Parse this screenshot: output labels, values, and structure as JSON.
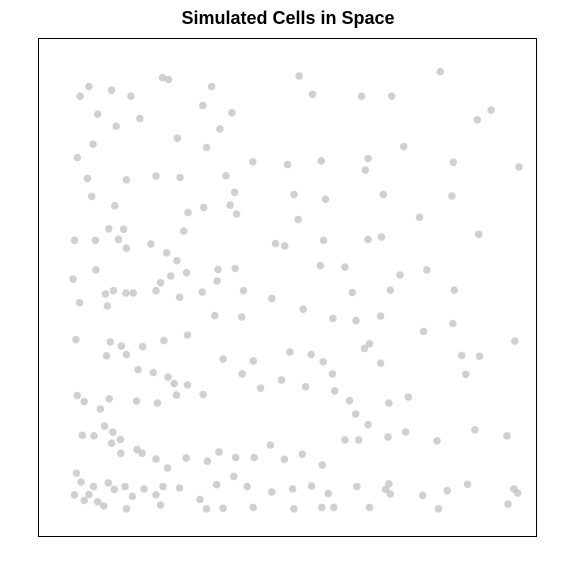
{
  "chart_data": {
    "type": "scatter",
    "title": "Simulated Cells in Space",
    "xlabel": "",
    "ylabel": "",
    "xlim": [
      0,
      100
    ],
    "ylim": [
      0,
      100
    ],
    "grid": false,
    "axes_visible": false,
    "point_color": "#c0c0c0",
    "series": [
      {
        "points": [
          [
            5.2,
            91.3
          ],
          [
            7.1,
            93.4
          ],
          [
            12.0,
            92.6
          ],
          [
            16.2,
            91.3
          ],
          [
            24.3,
            94.9
          ],
          [
            33.6,
            93.4
          ],
          [
            23.0,
            95.3
          ],
          [
            52.5,
            95.7
          ],
          [
            55.4,
            91.7
          ],
          [
            66.0,
            91.3
          ],
          [
            72.5,
            91.3
          ],
          [
            83.0,
            96.6
          ],
          [
            9.0,
            87.4
          ],
          [
            18.1,
            86.5
          ],
          [
            13.0,
            84.8
          ],
          [
            8.0,
            80.9
          ],
          [
            26.2,
            82.2
          ],
          [
            31.7,
            89.3
          ],
          [
            35.4,
            84.2
          ],
          [
            38.0,
            87.7
          ],
          [
            32.5,
            80.2
          ],
          [
            94.0,
            88.3
          ],
          [
            91.0,
            86.2
          ],
          [
            4.6,
            78.0
          ],
          [
            6.8,
            73.5
          ],
          [
            15.2,
            73.2
          ],
          [
            21.6,
            74.0
          ],
          [
            26.8,
            73.7
          ],
          [
            36.7,
            74.1
          ],
          [
            38.6,
            70.5
          ],
          [
            42.5,
            77.1
          ],
          [
            50.0,
            76.5
          ],
          [
            57.3,
            77.3
          ],
          [
            67.4,
            77.8
          ],
          [
            66.8,
            75.3
          ],
          [
            75.1,
            80.4
          ],
          [
            85.8,
            77.0
          ],
          [
            100.0,
            76.0
          ],
          [
            7.7,
            69.6
          ],
          [
            12.7,
            67.6
          ],
          [
            28.5,
            66.1
          ],
          [
            31.9,
            67.2
          ],
          [
            37.6,
            67.7
          ],
          [
            39.0,
            65.8
          ],
          [
            51.4,
            70.0
          ],
          [
            52.3,
            64.6
          ],
          [
            58.2,
            69.0
          ],
          [
            70.7,
            70.0
          ],
          [
            78.5,
            65.1
          ],
          [
            85.5,
            69.7
          ],
          [
            4.0,
            60.1
          ],
          [
            8.5,
            60.1
          ],
          [
            11.4,
            62.6
          ],
          [
            14.6,
            62.5
          ],
          [
            13.5,
            60.3
          ],
          [
            15.2,
            58.4
          ],
          [
            20.5,
            59.3
          ],
          [
            23.9,
            57.4
          ],
          [
            26.1,
            55.7
          ],
          [
            27.6,
            62.1
          ],
          [
            47.4,
            59.4
          ],
          [
            49.4,
            58.9
          ],
          [
            57.8,
            60.1
          ],
          [
            67.4,
            60.3
          ],
          [
            70.3,
            60.8
          ],
          [
            91.3,
            61.4
          ],
          [
            8.6,
            53.7
          ],
          [
            3.7,
            51.7
          ],
          [
            10.7,
            48.5
          ],
          [
            12.4,
            49.2
          ],
          [
            16.7,
            48.7
          ],
          [
            22.6,
            50.9
          ],
          [
            24.8,
            52.4
          ],
          [
            28.2,
            53.1
          ],
          [
            35.0,
            53.8
          ],
          [
            34.8,
            51.3
          ],
          [
            38.7,
            54.0
          ],
          [
            57.1,
            54.6
          ],
          [
            62.4,
            54.3
          ],
          [
            64.0,
            48.8
          ],
          [
            74.3,
            52.6
          ],
          [
            72.2,
            49.3
          ],
          [
            80.1,
            53.7
          ],
          [
            86.0,
            49.3
          ],
          [
            5.1,
            46.6
          ],
          [
            11.1,
            45.9
          ],
          [
            15.1,
            48.7
          ],
          [
            26.7,
            47.8
          ],
          [
            31.6,
            48.9
          ],
          [
            21.6,
            49.2
          ],
          [
            34.3,
            43.8
          ],
          [
            40.1,
            43.5
          ],
          [
            40.5,
            49.2
          ],
          [
            46.6,
            47.5
          ],
          [
            53.4,
            45.2
          ],
          [
            59.8,
            43.2
          ],
          [
            64.8,
            42.7
          ],
          [
            70.1,
            43.7
          ],
          [
            79.4,
            40.4
          ],
          [
            85.7,
            42.1
          ],
          [
            4.3,
            38.6
          ],
          [
            11.7,
            38.1
          ],
          [
            14.1,
            37.2
          ],
          [
            10.9,
            35.1
          ],
          [
            15.2,
            35.4
          ],
          [
            18.7,
            37.1
          ],
          [
            23.3,
            38.4
          ],
          [
            28.4,
            39.6
          ],
          [
            17.7,
            32.1
          ],
          [
            21.0,
            31.5
          ],
          [
            36.1,
            34.4
          ],
          [
            42.6,
            34.0
          ],
          [
            40.2,
            31.2
          ],
          [
            55.1,
            35.4
          ],
          [
            50.5,
            35.9
          ],
          [
            57.7,
            33.8
          ],
          [
            59.7,
            31.2
          ],
          [
            66.6,
            36.7
          ],
          [
            67.7,
            37.7
          ],
          [
            70.1,
            33.5
          ],
          [
            87.6,
            35.2
          ],
          [
            91.5,
            35.0
          ],
          [
            99.1,
            38.3
          ],
          [
            4.6,
            26.5
          ],
          [
            6.1,
            25.2
          ],
          [
            9.6,
            23.6
          ],
          [
            11.5,
            25.8
          ],
          [
            17.4,
            25.3
          ],
          [
            21.9,
            24.9
          ],
          [
            26.0,
            26.6
          ],
          [
            24.2,
            30.5
          ],
          [
            25.5,
            29.1
          ],
          [
            28.4,
            28.8
          ],
          [
            31.8,
            26.7
          ],
          [
            44.2,
            28.1
          ],
          [
            48.7,
            29.9
          ],
          [
            53.9,
            28.4
          ],
          [
            60.2,
            27.5
          ],
          [
            63.4,
            25.4
          ],
          [
            64.7,
            22.5
          ],
          [
            71.9,
            24.9
          ],
          [
            76.1,
            26.2
          ],
          [
            88.5,
            31.1
          ],
          [
            5.7,
            17.9
          ],
          [
            8.2,
            17.8
          ],
          [
            10.5,
            19.9
          ],
          [
            12.3,
            18.6
          ],
          [
            13.9,
            17.0
          ],
          [
            12.0,
            16.2
          ],
          [
            14.0,
            14.0
          ],
          [
            17.5,
            14.8
          ],
          [
            18.6,
            14.0
          ],
          [
            21.6,
            12.8
          ],
          [
            24.1,
            10.8
          ],
          [
            28.1,
            13.0
          ],
          [
            32.7,
            12.3
          ],
          [
            35.2,
            14.3
          ],
          [
            38.8,
            13.1
          ],
          [
            42.8,
            13.1
          ],
          [
            46.3,
            15.8
          ],
          [
            49.3,
            12.7
          ],
          [
            53.2,
            13.8
          ],
          [
            57.5,
            11.5
          ],
          [
            62.4,
            16.9
          ],
          [
            65.4,
            16.9
          ],
          [
            67.4,
            20.2
          ],
          [
            71.7,
            17.5
          ],
          [
            75.5,
            18.6
          ],
          [
            82.3,
            16.7
          ],
          [
            90.5,
            19.1
          ],
          [
            97.4,
            17.8
          ],
          [
            4.4,
            9.7
          ],
          [
            5.4,
            7.8
          ],
          [
            7.1,
            5.1
          ],
          [
            8.1,
            6.8
          ],
          [
            11.3,
            7.6
          ],
          [
            12.6,
            6.2
          ],
          [
            14.9,
            6.8
          ],
          [
            16.5,
            4.7
          ],
          [
            19.0,
            6.3
          ],
          [
            21.6,
            5.0
          ],
          [
            23.1,
            6.8
          ],
          [
            26.7,
            6.5
          ],
          [
            31.1,
            4.0
          ],
          [
            34.7,
            7.2
          ],
          [
            38.4,
            9.0
          ],
          [
            41.3,
            6.8
          ],
          [
            46.6,
            5.6
          ],
          [
            51.1,
            6.3
          ],
          [
            55.2,
            6.9
          ],
          [
            58.8,
            5.3
          ],
          [
            65.0,
            6.8
          ],
          [
            71.2,
            6.2
          ],
          [
            71.9,
            7.4
          ],
          [
            79.2,
            4.9
          ],
          [
            84.5,
            5.9
          ],
          [
            88.9,
            7.3
          ],
          [
            98.9,
            6.3
          ],
          [
            99.7,
            5.4
          ],
          [
            4.0,
            5.0
          ],
          [
            6.1,
            3.8
          ],
          [
            9.0,
            3.5
          ],
          [
            10.3,
            2.6
          ],
          [
            15.2,
            2.0
          ],
          [
            22.6,
            2.8
          ],
          [
            32.5,
            2.0
          ],
          [
            36.1,
            2.1
          ],
          [
            42.6,
            2.3
          ],
          [
            51.4,
            2.0
          ],
          [
            57.4,
            2.3
          ],
          [
            60.0,
            2.3
          ],
          [
            67.7,
            2.3
          ],
          [
            72.2,
            5.2
          ],
          [
            82.6,
            2.0
          ],
          [
            97.6,
            3.0
          ]
        ]
      }
    ]
  }
}
